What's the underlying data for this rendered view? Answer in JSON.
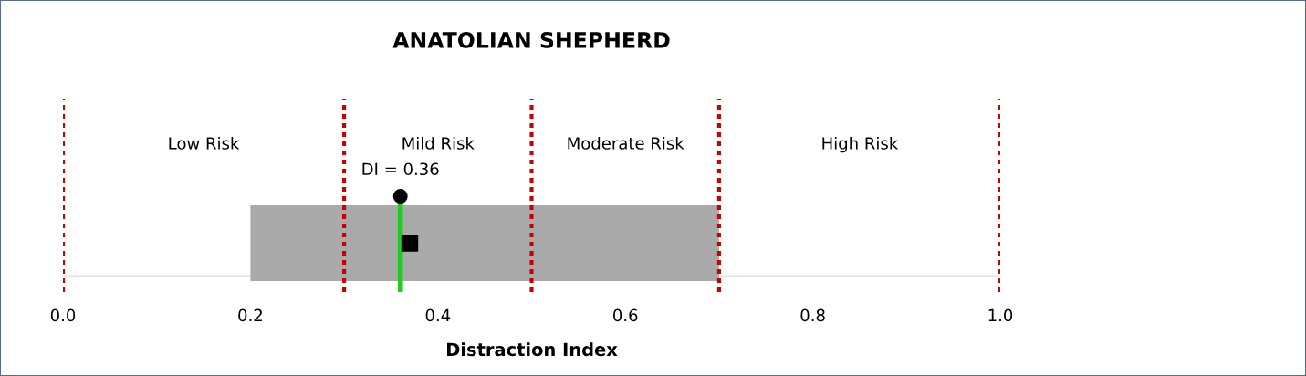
{
  "chart_data": {
    "type": "bar",
    "title": "ANATOLIAN SHEPHERD",
    "xlabel": "Distraction Index",
    "orientation": "horizontal",
    "categories": [
      null
    ],
    "series": [
      {
        "values": [
          0.5
        ],
        "base": [
          0.2
        ],
        "color": "#aaaaaa"
      },
      {
        "type": "scatter",
        "values": [
          0.37
        ],
        "color": "#000000",
        "marker": "square"
      }
    ],
    "xlim": [
      0,
      1
    ],
    "xticks": [
      {
        "value": 0,
        "label": "0.0"
      },
      {
        "value": 0.2,
        "label": "0.2"
      },
      {
        "value": 0.4,
        "label": "0.4"
      },
      {
        "value": 0.6,
        "label": "0.6"
      },
      {
        "value": 0.8,
        "label": "0.8"
      },
      {
        "value": 1,
        "label": "1.0"
      }
    ],
    "tick_labels": "x",
    "ref_lines": [
      {
        "axis": "x",
        "value": 0,
        "color": "#cc0000",
        "line_style": "dotted"
      },
      {
        "axis": "x",
        "value": 0.3,
        "color": "#cc0000",
        "line_style": "dotted"
      },
      {
        "axis": "x",
        "value": 0.5,
        "color": "#cc0000",
        "line_style": "dotted"
      },
      {
        "axis": "x",
        "value": 0.7,
        "color": "#cc0000",
        "line_style": "dotted"
      },
      {
        "axis": "x",
        "value": 1,
        "color": "#cc0000",
        "line_style": "dotted"
      },
      {
        "axis": "x",
        "value": 0.36,
        "color": "#22cc22",
        "line_style": "solid",
        "label": "DI = 0.36"
      }
    ],
    "annotations": [
      "Low Risk",
      "Mild Risk",
      "Moderate Risk",
      "High Risk"
    ]
  }
}
